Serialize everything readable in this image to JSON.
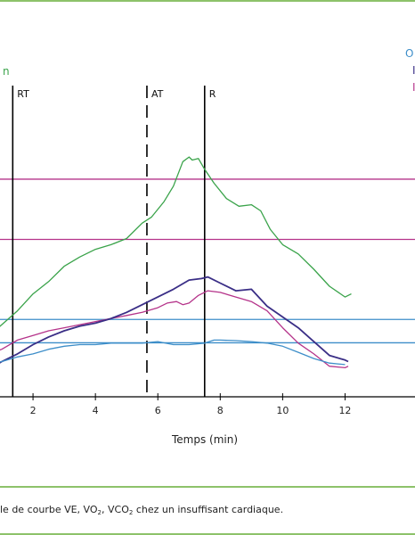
{
  "chart_data": {
    "type": "line",
    "xlabel": "Temps (min)",
    "xticks": [
      2,
      4,
      6,
      8,
      10,
      12
    ],
    "xlim": [
      0,
      13.3
    ],
    "ylim": [
      0,
      100
    ],
    "left_label_fragment": "n",
    "right_label_fragments": [
      "O",
      "I",
      "I"
    ],
    "markers": [
      {
        "label": "RT",
        "x": 1.35,
        "style": "solid"
      },
      {
        "label": "AT",
        "x": 5.65,
        "style": "dashed"
      },
      {
        "label": "R",
        "x": 7.5,
        "style": "solid"
      }
    ],
    "reference_lines": [
      {
        "y": 69.3,
        "color": "#b5338a"
      },
      {
        "y": 49.7,
        "color": "#b5338a"
      },
      {
        "y": 23.7,
        "color": "#3d8ec9"
      },
      {
        "y": 16.1,
        "color": "#3d8ec9"
      }
    ],
    "series": [
      {
        "color": "#3aa34a",
        "points": [
          [
            0,
            14.5
          ],
          [
            0.5,
            17.5
          ],
          [
            1,
            22
          ],
          [
            1.5,
            26.5
          ],
          [
            2,
            32
          ],
          [
            2.5,
            36
          ],
          [
            3,
            41
          ],
          [
            3.5,
            44
          ],
          [
            4,
            46.5
          ],
          [
            4.5,
            48
          ],
          [
            5,
            50
          ],
          [
            5.5,
            55
          ],
          [
            5.8,
            57
          ],
          [
            6.2,
            62
          ],
          [
            6.5,
            67
          ],
          [
            6.8,
            75
          ],
          [
            7.0,
            76.5
          ],
          [
            7.1,
            75.5
          ],
          [
            7.3,
            76
          ],
          [
            7.5,
            72.5
          ],
          [
            7.8,
            68
          ],
          [
            8.2,
            63
          ],
          [
            8.6,
            60.5
          ],
          [
            9.0,
            61
          ],
          [
            9.3,
            59
          ],
          [
            9.6,
            53
          ],
          [
            10,
            48
          ],
          [
            10.5,
            45
          ],
          [
            11,
            40
          ],
          [
            11.5,
            34.5
          ],
          [
            12,
            31
          ],
          [
            12.2,
            32
          ]
        ]
      },
      {
        "color": "#b5338a",
        "points": [
          [
            0,
            10
          ],
          [
            0.5,
            12
          ],
          [
            1,
            14
          ],
          [
            1.5,
            17
          ],
          [
            2,
            18.5
          ],
          [
            2.5,
            20
          ],
          [
            3,
            21
          ],
          [
            3.5,
            22
          ],
          [
            4,
            23
          ],
          [
            4.5,
            24
          ],
          [
            5,
            25
          ],
          [
            5.5,
            26
          ],
          [
            6,
            27.5
          ],
          [
            6.3,
            29
          ],
          [
            6.6,
            29.5
          ],
          [
            6.8,
            28.5
          ],
          [
            7.0,
            29
          ],
          [
            7.3,
            31.5
          ],
          [
            7.6,
            33
          ],
          [
            8,
            32.5
          ],
          [
            8.5,
            31
          ],
          [
            9,
            29.5
          ],
          [
            9.5,
            26.5
          ],
          [
            10,
            21
          ],
          [
            10.5,
            16
          ],
          [
            11,
            12.5
          ],
          [
            11.5,
            8.5
          ],
          [
            12,
            8
          ],
          [
            12.1,
            8.5
          ]
        ]
      },
      {
        "color": "#3a2e86",
        "points": [
          [
            0,
            5
          ],
          [
            0.5,
            7
          ],
          [
            1,
            10
          ],
          [
            1.5,
            12.5
          ],
          [
            2,
            15.5
          ],
          [
            2.5,
            18
          ],
          [
            3,
            20
          ],
          [
            3.5,
            21.5
          ],
          [
            4,
            22.5
          ],
          [
            4.5,
            24
          ],
          [
            5,
            26
          ],
          [
            5.5,
            28.5
          ],
          [
            6,
            31
          ],
          [
            6.5,
            33.5
          ],
          [
            7,
            36.5
          ],
          [
            7.4,
            37
          ],
          [
            7.6,
            37.5
          ],
          [
            8,
            35.5
          ],
          [
            8.5,
            33
          ],
          [
            9,
            33.5
          ],
          [
            9.5,
            28
          ],
          [
            10,
            24.5
          ],
          [
            10.5,
            21
          ],
          [
            11,
            16.5
          ],
          [
            11.5,
            12
          ],
          [
            12,
            10.5
          ],
          [
            12.1,
            10
          ]
        ]
      },
      {
        "color": "#3d8ec9",
        "points": [
          [
            0,
            8
          ],
          [
            0.5,
            9
          ],
          [
            1,
            10
          ],
          [
            1.5,
            11.5
          ],
          [
            2,
            12.5
          ],
          [
            2.5,
            14
          ],
          [
            3,
            15
          ],
          [
            3.5,
            15.5
          ],
          [
            4,
            15.5
          ],
          [
            4.5,
            16
          ],
          [
            5,
            16
          ],
          [
            5.5,
            16
          ],
          [
            6,
            16.5
          ],
          [
            6.5,
            15.5
          ],
          [
            7,
            15.5
          ],
          [
            7.5,
            16
          ],
          [
            7.8,
            17
          ],
          [
            8,
            17
          ],
          [
            8.5,
            16.8
          ],
          [
            9,
            16.5
          ],
          [
            9.5,
            16
          ],
          [
            10,
            15
          ],
          [
            10.5,
            13
          ],
          [
            11,
            11
          ],
          [
            11.5,
            9.5
          ],
          [
            12,
            9
          ]
        ]
      }
    ]
  },
  "caption": {
    "before_1": "le de courbe VE, VO",
    "sub_1": "2",
    "mid": ", VCO",
    "sub_2": "2",
    "after": " chez un insuffisant cardiaque."
  }
}
